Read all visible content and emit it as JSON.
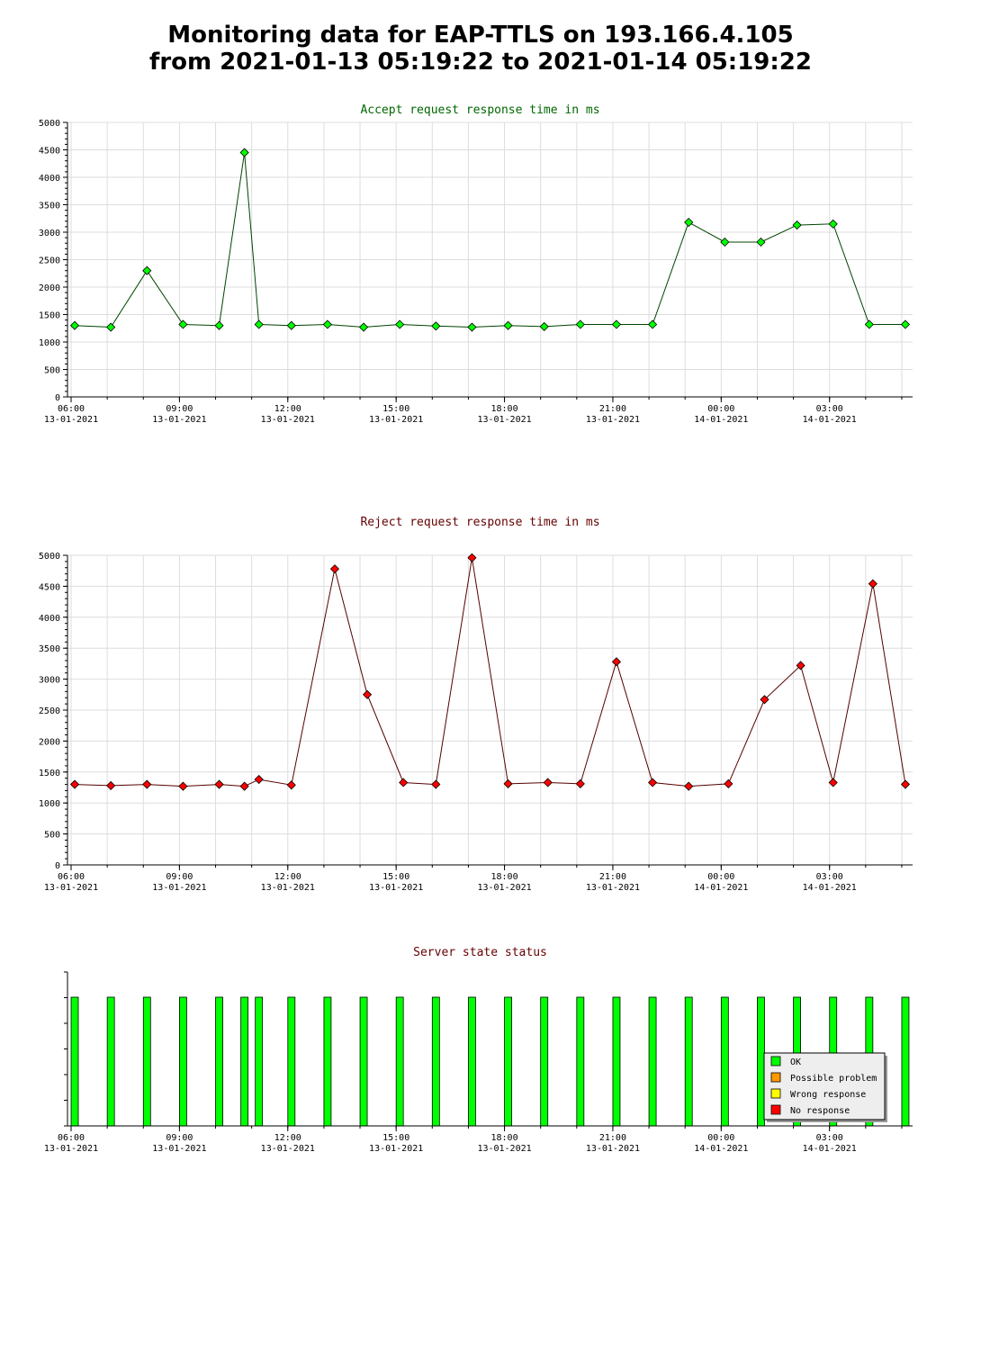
{
  "page": {
    "title_line1": "Monitoring data for EAP-TTLS on 193.166.4.105",
    "title_line2": "from 2021-01-13 05:19:22 to 2021-01-14 05:19:22"
  },
  "colors": {
    "accept_line": "#004400",
    "accept_marker": "#00ff00",
    "accept_title": "#006600",
    "reject_line": "#550000",
    "reject_marker": "#ff0000",
    "reject_title": "#660000",
    "status_title": "#660000",
    "ok": "#00ff00",
    "possible_problem": "#ff9900",
    "wrong_response": "#ffff00",
    "no_response": "#ff0000",
    "grid": "#dddddd"
  },
  "x_axis": {
    "ticks": [
      {
        "time": "06:00",
        "date": "13-01-2021",
        "hours": 6
      },
      {
        "time": "09:00",
        "date": "13-01-2021",
        "hours": 9
      },
      {
        "time": "12:00",
        "date": "13-01-2021",
        "hours": 12
      },
      {
        "time": "15:00",
        "date": "13-01-2021",
        "hours": 15
      },
      {
        "time": "18:00",
        "date": "13-01-2021",
        "hours": 18
      },
      {
        "time": "21:00",
        "date": "13-01-2021",
        "hours": 21
      },
      {
        "time": "00:00",
        "date": "14-01-2021",
        "hours": 24
      },
      {
        "time": "03:00",
        "date": "14-01-2021",
        "hours": 27
      }
    ],
    "range_hours": [
      5.9,
      29.3
    ]
  },
  "chart_data": [
    {
      "type": "line",
      "title": "Accept request response time in ms",
      "ylim": [
        0,
        5000
      ],
      "yticks": [
        0,
        500,
        1000,
        1500,
        2000,
        2500,
        3000,
        3500,
        4000,
        4500,
        5000
      ],
      "grid": true,
      "x_hours": [
        6.1,
        7.1,
        8.1,
        9.1,
        10.1,
        10.8,
        11.2,
        12.1,
        13.1,
        14.1,
        15.1,
        16.1,
        17.1,
        18.1,
        19.1,
        20.1,
        21.1,
        22.1,
        23.1,
        24.1,
        25.1,
        26.1,
        27.1,
        28.1,
        29.1
      ],
      "series": [
        {
          "values": [
            1300,
            1270,
            2300,
            1320,
            1300,
            4450,
            1320,
            1300,
            1320,
            1270,
            1320,
            1290,
            1270,
            1300,
            1280,
            1320,
            1320,
            1320,
            3180,
            2820,
            2820,
            3130,
            3150,
            1320,
            1320
          ]
        }
      ]
    },
    {
      "type": "line",
      "title": "Reject request response time in ms",
      "ylim": [
        0,
        5000
      ],
      "yticks": [
        0,
        500,
        1000,
        1500,
        2000,
        2500,
        3000,
        3500,
        4000,
        4500,
        5000
      ],
      "grid": true,
      "x_hours": [
        6.1,
        7.1,
        8.1,
        9.1,
        10.1,
        10.8,
        11.2,
        12.1,
        13.3,
        14.2,
        15.2,
        16.1,
        17.1,
        18.1,
        19.2,
        20.1,
        21.1,
        22.1,
        23.1,
        24.2,
        25.2,
        26.2,
        27.1,
        28.2,
        29.1
      ],
      "series": [
        {
          "values": [
            1300,
            1280,
            1300,
            1270,
            1300,
            1270,
            1380,
            1290,
            4780,
            2750,
            1330,
            1300,
            4960,
            1310,
            1330,
            1310,
            3280,
            1330,
            1270,
            1310,
            2670,
            3220,
            1330,
            4540,
            1300
          ]
        }
      ]
    },
    {
      "type": "bar",
      "title": "Server state status",
      "x_hours": [
        6.1,
        7.1,
        8.1,
        9.1,
        10.1,
        10.8,
        11.2,
        12.1,
        13.1,
        14.1,
        15.1,
        16.1,
        17.1,
        18.1,
        19.1,
        20.1,
        21.1,
        22.1,
        23.1,
        24.1,
        25.1,
        26.1,
        27.1,
        28.1,
        29.1
      ],
      "states": [
        "ok",
        "ok",
        "ok",
        "ok",
        "ok",
        "ok",
        "ok",
        "ok",
        "ok",
        "ok",
        "ok",
        "ok",
        "ok",
        "ok",
        "ok",
        "ok",
        "ok",
        "ok",
        "ok",
        "ok",
        "ok",
        "ok",
        "ok",
        "ok",
        "ok"
      ],
      "legend": [
        {
          "key": "ok",
          "label": "OK"
        },
        {
          "key": "possible_problem",
          "label": "Possible problem"
        },
        {
          "key": "wrong_response",
          "label": "Wrong response"
        },
        {
          "key": "no_response",
          "label": "No response"
        }
      ],
      "legend_position": "bottom-right"
    }
  ]
}
